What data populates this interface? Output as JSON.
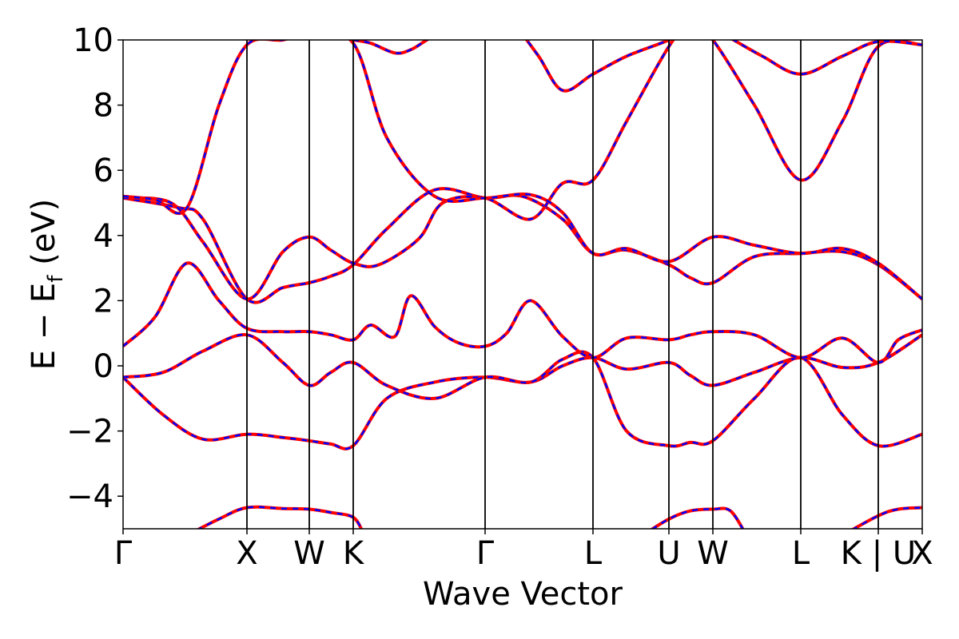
{
  "chart_data": {
    "type": "line",
    "title": "",
    "xlabel": "Wave Vector",
    "ylabel_main": "E − E",
    "ylabel_sub": "f",
    "ylabel_unit": " (eV)",
    "ylim": [
      -5,
      10
    ],
    "xlim": [
      0,
      10
    ],
    "yticks": [
      -4,
      -2,
      0,
      2,
      4,
      6,
      8,
      10
    ],
    "ytick_labels": [
      "−4",
      "−2",
      "0",
      "2",
      "4",
      "6",
      "8",
      "10"
    ],
    "kpoints": [
      {
        "label": "Γ",
        "x": 0.0
      },
      {
        "label": "X",
        "x": 1.55
      },
      {
        "label": "W",
        "x": 2.33
      },
      {
        "label": "K",
        "x": 2.88
      },
      {
        "label": "Γ",
        "x": 4.53
      },
      {
        "label": "L",
        "x": 5.88
      },
      {
        "label": "U",
        "x": 6.83
      },
      {
        "label": "W",
        "x": 7.38
      },
      {
        "label": "L",
        "x": 8.48
      },
      {
        "label": "K | U",
        "x": 9.45
      },
      {
        "label": "X",
        "x": 10.0
      }
    ],
    "grid": false,
    "series": [
      {
        "style": "solid",
        "color": "#ff0000"
      },
      {
        "style": "dashed",
        "color": "#0000ff"
      }
    ],
    "bands": [
      {
        "x": [
          0,
          0.5,
          1.0,
          1.55,
          2.0,
          2.33,
          2.6,
          2.88,
          3.3,
          3.9,
          4.53,
          5.1,
          5.5,
          5.88,
          6.3,
          6.83,
          7.1,
          7.38,
          7.9,
          8.48,
          9.0,
          9.45,
          10.0
        ],
        "y": [
          -0.35,
          -1.5,
          -2.25,
          -2.1,
          -2.2,
          -2.3,
          -2.4,
          -2.45,
          -1.0,
          -0.5,
          -0.35,
          -0.5,
          0.0,
          0.25,
          -0.1,
          0.1,
          -0.3,
          -0.6,
          -0.2,
          0.25,
          -0.05,
          0.1,
          0.95
        ]
      },
      {
        "x": [
          0,
          0.5,
          1.0,
          1.55,
          2.0,
          2.33,
          2.6,
          2.88,
          3.3,
          3.9,
          4.53,
          5.1,
          5.5,
          5.88,
          6.3,
          6.83,
          7.1,
          7.38,
          7.9,
          8.48,
          9.0,
          9.45,
          10.0
        ],
        "y": [
          -0.35,
          -0.2,
          0.45,
          0.95,
          0.1,
          -0.6,
          -0.2,
          0.1,
          -0.6,
          -1.0,
          -0.35,
          -0.5,
          0.2,
          0.25,
          -2.0,
          -2.45,
          -2.35,
          -2.3,
          -1.0,
          0.25,
          -1.5,
          -2.45,
          -2.1
        ]
      },
      {
        "x": [
          0,
          0.4,
          0.8,
          1.2,
          1.55,
          2.0,
          2.33,
          2.6,
          2.88,
          3.1,
          3.4,
          3.6,
          3.9,
          4.2,
          4.53,
          4.8,
          5.1,
          5.5,
          5.88,
          6.3,
          6.83,
          7.1,
          7.38,
          7.9,
          8.48,
          9.0,
          9.45,
          9.7,
          10.0
        ],
        "y": [
          0.6,
          1.5,
          3.15,
          2.0,
          1.15,
          1.05,
          1.05,
          0.95,
          0.8,
          1.25,
          0.9,
          2.15,
          1.2,
          0.7,
          0.6,
          1.0,
          2.0,
          0.9,
          0.25,
          0.85,
          0.8,
          0.95,
          1.05,
          0.95,
          0.25,
          0.85,
          0.1,
          0.8,
          1.1
        ]
      },
      {
        "x": [
          0,
          0.7,
          1.0,
          1.55,
          2.0,
          2.33,
          2.6,
          2.88,
          3.3,
          3.9,
          4.53,
          5.0,
          5.5,
          5.88,
          6.3,
          6.83,
          7.1,
          7.38,
          7.9,
          8.48,
          9.0,
          9.45,
          10.0
        ],
        "y": [
          5.15,
          4.85,
          4.5,
          2.05,
          2.4,
          2.55,
          2.75,
          3.1,
          4.2,
          5.4,
          5.15,
          5.2,
          4.5,
          3.45,
          3.55,
          3.1,
          2.7,
          2.55,
          3.35,
          3.45,
          3.5,
          3.1,
          2.05
        ]
      },
      {
        "x": [
          0,
          0.6,
          1.0,
          1.55,
          2.0,
          2.33,
          2.6,
          2.88,
          3.2,
          3.7,
          4.0,
          4.53,
          5.1,
          5.5,
          5.88,
          6.3,
          6.83,
          7.1,
          7.38,
          7.9,
          8.48,
          9.0,
          9.45,
          10.0
        ],
        "y": [
          5.15,
          5.0,
          3.8,
          2.05,
          3.5,
          3.95,
          3.55,
          3.15,
          3.1,
          3.9,
          5.0,
          5.15,
          4.5,
          5.6,
          5.7,
          7.5,
          9.8,
          10.5,
          10.0,
          8.0,
          5.7,
          7.5,
          9.8,
          9.85
        ]
      },
      {
        "x": [
          0,
          0.4,
          0.8,
          1.2,
          1.55,
          2.0,
          2.33,
          2.88,
          3.3,
          3.9,
          4.53,
          5.1,
          5.5,
          5.88,
          6.3,
          6.83,
          7.38,
          7.9,
          8.48,
          9.0,
          9.45,
          10.0
        ],
        "y": [
          5.2,
          5.1,
          4.85,
          8.0,
          9.85,
          10.0,
          10.2,
          9.9,
          7.0,
          5.2,
          5.15,
          5.25,
          4.7,
          3.45,
          3.6,
          3.2,
          3.95,
          3.7,
          3.45,
          3.6,
          3.15,
          2.05
        ]
      },
      {
        "x": [
          2.88,
          3.1,
          3.4,
          3.6,
          3.8,
          4.0
        ],
        "y": [
          10.0,
          9.9,
          9.6,
          9.7,
          10.0,
          10.3
        ]
      },
      {
        "x": [
          4.9,
          5.2,
          5.5,
          5.88,
          6.3,
          6.83,
          7.0
        ],
        "y": [
          10.5,
          9.5,
          8.45,
          8.95,
          9.5,
          10.0,
          10.3
        ]
      },
      {
        "x": [
          7.5,
          8.0,
          8.48,
          9.0,
          9.45,
          10.0
        ],
        "y": [
          10.2,
          9.5,
          8.95,
          9.5,
          9.95,
          9.85
        ]
      },
      {
        "x": [
          0.8,
          1.2,
          1.55,
          2.0,
          2.33,
          2.6,
          2.88,
          3.0
        ],
        "y": [
          -5.2,
          -4.7,
          -4.35,
          -4.38,
          -4.4,
          -4.5,
          -4.65,
          -5.1
        ]
      },
      {
        "x": [
          6.5,
          6.83,
          7.1,
          7.38,
          7.6,
          7.8
        ],
        "y": [
          -5.2,
          -4.7,
          -4.45,
          -4.4,
          -4.45,
          -5.2
        ]
      },
      {
        "x": [
          9.0,
          9.45,
          9.7,
          10.0
        ],
        "y": [
          -5.2,
          -4.6,
          -4.4,
          -4.35
        ]
      }
    ]
  }
}
